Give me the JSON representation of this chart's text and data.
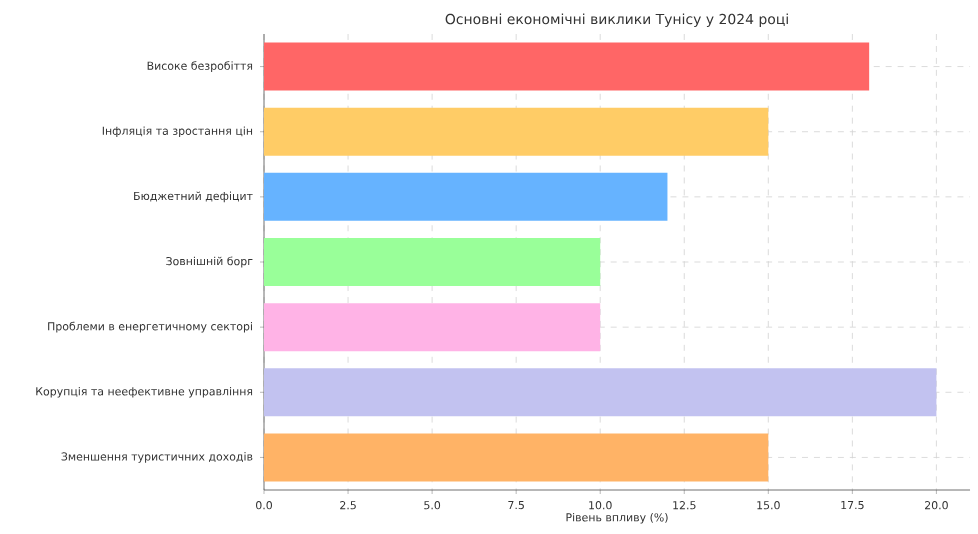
{
  "chart_data": {
    "type": "bar",
    "orientation": "horizontal",
    "title": "Основні економічні виклики Тунісу у 2024 році",
    "xlabel": "Рівень впливу (%)",
    "categories": [
      "Високе безробіття",
      "Інфляція та зростання цін",
      "Бюджетний дефіцит",
      "Зовнішній борг",
      "Проблеми в енергетичному секторі",
      "Корупція та неефективне управління",
      "Зменшення туристичних доходів"
    ],
    "values": [
      18,
      15,
      12,
      10,
      10,
      20,
      15
    ],
    "colors": [
      "#ff6666",
      "#ffcc66",
      "#66b3ff",
      "#99ff99",
      "#ffb3e6",
      "#c2c2f0",
      "#ffb366"
    ],
    "xlim": [
      0,
      21
    ],
    "xticks": [
      {
        "value": 0,
        "label": "0.0"
      },
      {
        "value": 2.5,
        "label": "2.5"
      },
      {
        "value": 5,
        "label": "5.0"
      },
      {
        "value": 7.5,
        "label": "7.5"
      },
      {
        "value": 10,
        "label": "10.0"
      },
      {
        "value": 12.5,
        "label": "12.5"
      },
      {
        "value": 15,
        "label": "15.0"
      },
      {
        "value": 17.5,
        "label": "17.5"
      },
      {
        "value": 20,
        "label": "20.0"
      }
    ],
    "grid": true
  }
}
